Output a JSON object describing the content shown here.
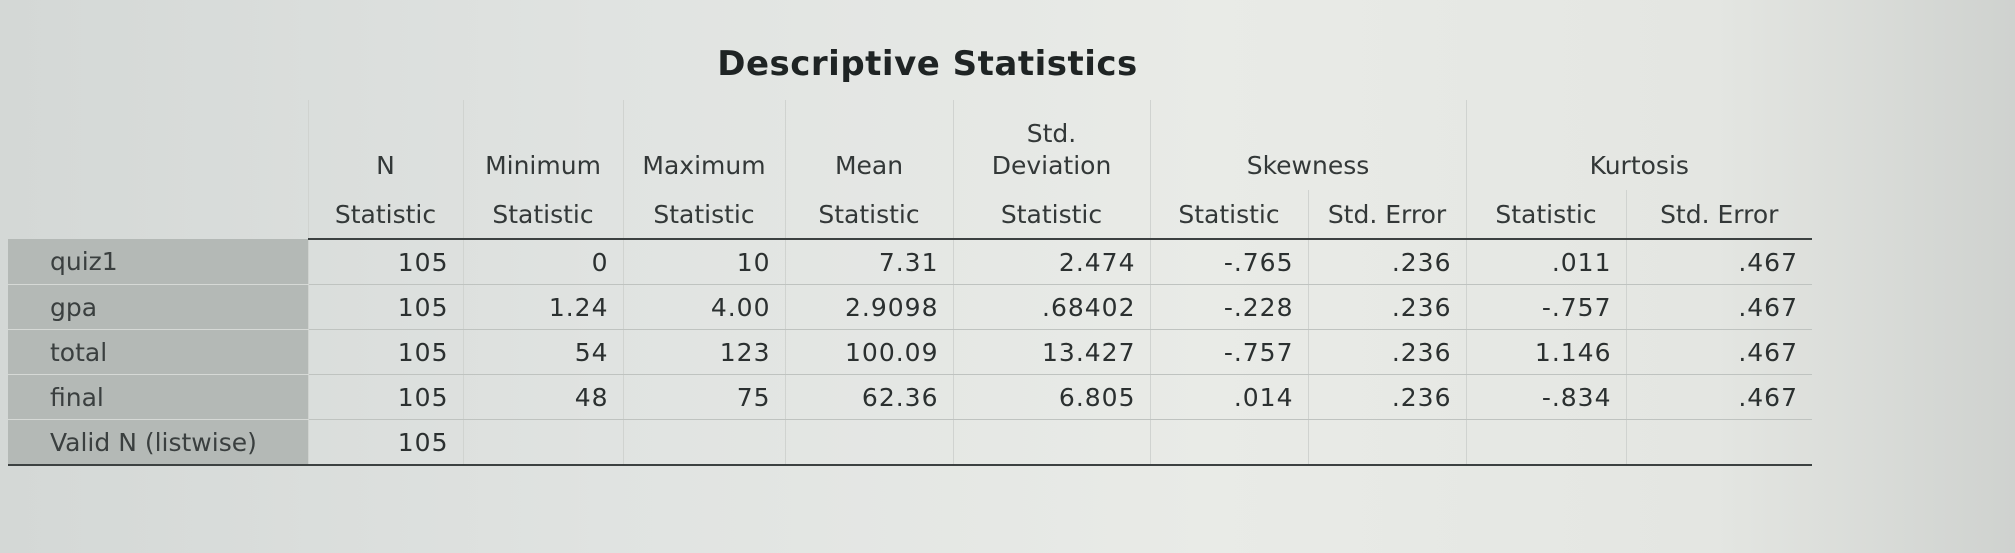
{
  "title": "Descriptive Statistics",
  "header": {
    "groups": [
      "N",
      "Minimum",
      "Maximum",
      "Mean",
      "Std.\nDeviation",
      "Skewness",
      "Kurtosis"
    ],
    "sub": [
      "Statistic",
      "Statistic",
      "Statistic",
      "Statistic",
      "Statistic",
      "Statistic",
      "Std. Error",
      "Statistic",
      "Std. Error"
    ]
  },
  "rows": [
    {
      "label": "quiz1",
      "values": [
        "105",
        "0",
        "10",
        "7.31",
        "2.474",
        "-.765",
        ".236",
        ".011",
        ".467"
      ]
    },
    {
      "label": "gpa",
      "values": [
        "105",
        "1.24",
        "4.00",
        "2.9098",
        ".68402",
        "-.228",
        ".236",
        "-.757",
        ".467"
      ]
    },
    {
      "label": "total",
      "values": [
        "105",
        "54",
        "123",
        "100.09",
        "13.427",
        "-.757",
        ".236",
        "1.146",
        ".467"
      ]
    },
    {
      "label": "final",
      "values": [
        "105",
        "48",
        "75",
        "62.36",
        "6.805",
        ".014",
        ".236",
        "-.834",
        ".467"
      ]
    },
    {
      "label": "Valid N (listwise)",
      "values": [
        "105",
        "",
        "",
        "",
        "",
        "",
        "",
        "",
        ""
      ]
    }
  ]
}
